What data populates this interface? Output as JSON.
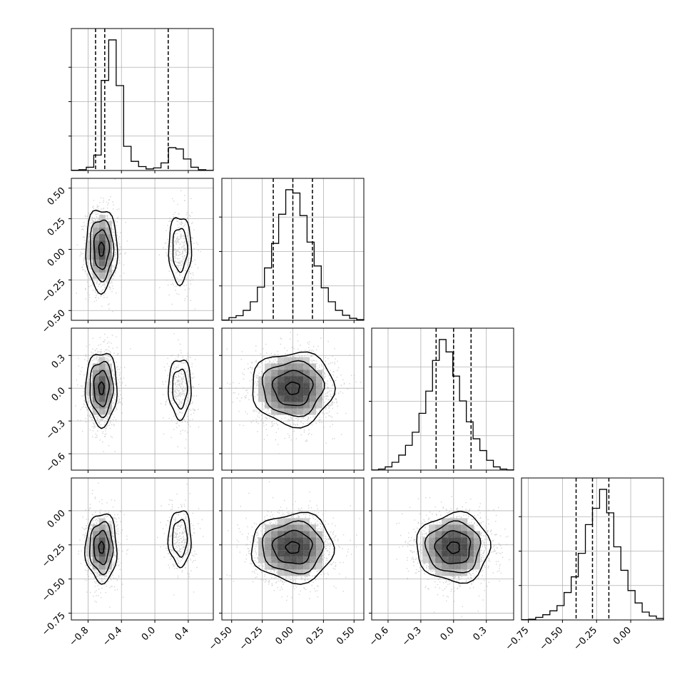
{
  "chart_data": {
    "type": "corner",
    "grid": true,
    "colors": {
      "hist": "#000000",
      "scatter": "#b0b0b0",
      "grid": "#b0b0b0",
      "axes": "#000000"
    },
    "parameters": [
      {
        "range": [
          -1.0,
          0.7
        ],
        "ticks": [
          -0.8,
          -0.4,
          0.0,
          0.4
        ],
        "tick_labels": [
          "−0.8",
          "−0.4",
          "0.0",
          "0.4"
        ],
        "quantiles": [
          -0.71,
          -0.6,
          0.16
        ]
      },
      {
        "range": [
          -0.58,
          0.58
        ],
        "ticks": [
          -0.5,
          -0.25,
          0.0,
          0.25,
          0.5
        ],
        "tick_labels": [
          "−0.50",
          "−0.25",
          "0.00",
          "0.25",
          "0.50"
        ],
        "quantiles": [
          -0.16,
          0.0,
          0.16
        ]
      },
      {
        "range": [
          -0.75,
          0.55
        ],
        "ticks": [
          -0.6,
          -0.3,
          0.0,
          0.3
        ],
        "tick_labels": [
          "−0.6",
          "−0.3",
          "0.0",
          "0.3"
        ],
        "quantiles": [
          -0.16,
          0.0,
          0.16
        ]
      },
      {
        "range": [
          -0.8,
          0.24
        ],
        "ticks": [
          -0.75,
          -0.5,
          -0.25,
          0.0
        ],
        "tick_labels": [
          "−0.75",
          "−0.50",
          "−0.25",
          "0.00"
        ],
        "quantiles": [
          -0.4,
          -0.28,
          -0.16
        ]
      }
    ],
    "y_tick_labels": [
      null,
      [
        "−0.50",
        "−0.25",
        "0.00",
        "0.25",
        "0.50"
      ],
      [
        "−0.6",
        "−0.3",
        "0.0",
        "0.3"
      ],
      [
        "−0.75",
        "−0.50",
        "−0.25",
        "0.00"
      ]
    ],
    "histograms": [
      {
        "param": 0,
        "counts": [
          2,
          6,
          25,
          118,
          690,
          1000,
          650,
          185,
          70,
          30,
          12,
          20,
          58,
          175,
          165,
          88,
          25,
          6,
          1
        ]
      },
      {
        "param": 1,
        "counts": [
          2,
          20,
          35,
          75,
          140,
          250,
          395,
          580,
          800,
          985,
          960,
          790,
          590,
          410,
          245,
          140,
          75,
          38,
          15,
          5
        ]
      },
      {
        "param": 2,
        "counts": [
          1,
          8,
          25,
          60,
          115,
          190,
          290,
          435,
          605,
          840,
          1000,
          905,
          720,
          530,
          370,
          240,
          150,
          75,
          25,
          8,
          2
        ]
      },
      {
        "param": 3,
        "counts": [
          2,
          5,
          20,
          40,
          70,
          110,
          210,
          330,
          510,
          730,
          855,
          1000,
          820,
          560,
          380,
          225,
          130,
          60,
          30,
          12
        ]
      }
    ],
    "blobs": [
      {
        "row": 1,
        "col": 0,
        "components": [
          {
            "center": [
              -0.64,
              0.0
            ],
            "sd": [
              0.09,
              0.16
            ],
            "weight": 0.8
          },
          {
            "center": [
              0.3,
              0.0
            ],
            "sd": [
              0.08,
              0.16
            ],
            "weight": 0.2
          }
        ]
      },
      {
        "row": 2,
        "col": 0,
        "components": [
          {
            "center": [
              -0.64,
              0.0
            ],
            "sd": [
              0.09,
              0.16
            ],
            "weight": 0.8
          },
          {
            "center": [
              0.3,
              0.0
            ],
            "sd": [
              0.08,
              0.16
            ],
            "weight": 0.2
          }
        ]
      },
      {
        "row": 2,
        "col": 1,
        "components": [
          {
            "center": [
              0.0,
              0.0
            ],
            "sd": [
              0.16,
              0.16
            ],
            "weight": 1.0
          }
        ]
      },
      {
        "row": 3,
        "col": 0,
        "components": [
          {
            "center": [
              -0.64,
              -0.27
            ],
            "sd": [
              0.09,
              0.12
            ],
            "weight": 0.8
          },
          {
            "center": [
              0.3,
              -0.2
            ],
            "sd": [
              0.08,
              0.12
            ],
            "weight": 0.2
          }
        ]
      },
      {
        "row": 3,
        "col": 1,
        "components": [
          {
            "center": [
              0.0,
              -0.27
            ],
            "sd": [
              0.16,
              0.12
            ],
            "weight": 1.0
          }
        ]
      },
      {
        "row": 3,
        "col": 2,
        "components": [
          {
            "center": [
              0.0,
              -0.27
            ],
            "sd": [
              0.16,
              0.12
            ],
            "weight": 1.0
          }
        ]
      }
    ]
  }
}
